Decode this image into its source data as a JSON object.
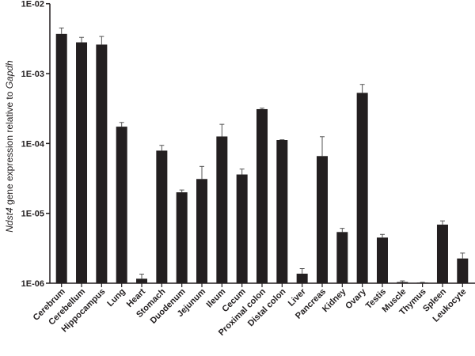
{
  "chart_data": {
    "type": "bar",
    "ylabel_italic": "Ndst4",
    "ylabel_mid": " gene expression relative to ",
    "ylabel_italic2": "Gapdh",
    "yscale": "log",
    "ylim": [
      1e-06,
      0.01
    ],
    "yticks": [
      1e-06,
      1e-05,
      0.0001,
      0.001,
      0.01
    ],
    "ytick_labels": [
      "1E-06",
      "1E-05",
      "1E-04",
      "1E-03",
      "1E-02"
    ],
    "grid": false,
    "bar_color": "#231f20",
    "categories": [
      "Cerebrum",
      "Cerebellum",
      "Hippocampus",
      "Lung",
      "Heart",
      "Stomach",
      "Duodenum",
      "Jejunum",
      "Ileum",
      "Cecum",
      "Proximal colon",
      "Distal colon",
      "Liver",
      "Pancreas",
      "Kidney",
      "Ovary",
      "Testis",
      "Muscle",
      "Thymus",
      "Spleen",
      "Leukocyte"
    ],
    "values": [
      0.0037,
      0.0028,
      0.0026,
      0.000174,
      1.16e-06,
      7.9e-05,
      2e-05,
      3.1e-05,
      0.000126,
      3.6e-05,
      0.00031,
      0.000112,
      1.37e-06,
      6.6e-05,
      5.4e-06,
      0.00053,
      4.5e-06,
      1.04e-06,
      1.02e-06,
      6.9e-06,
      2.26e-06
    ],
    "error_upper": [
      0.0045,
      0.0033,
      0.0034,
      0.0002,
      1.35e-06,
      9.4e-05,
      2.16e-05,
      4.7e-05,
      0.000188,
      4.3e-05,
      0.00032,
      0.000113,
      1.62e-06,
      0.000125,
      6.1e-06,
      0.0007,
      5e-06,
      1.08e-06,
      1.03e-06,
      7.8e-06,
      2.7e-06
    ]
  }
}
